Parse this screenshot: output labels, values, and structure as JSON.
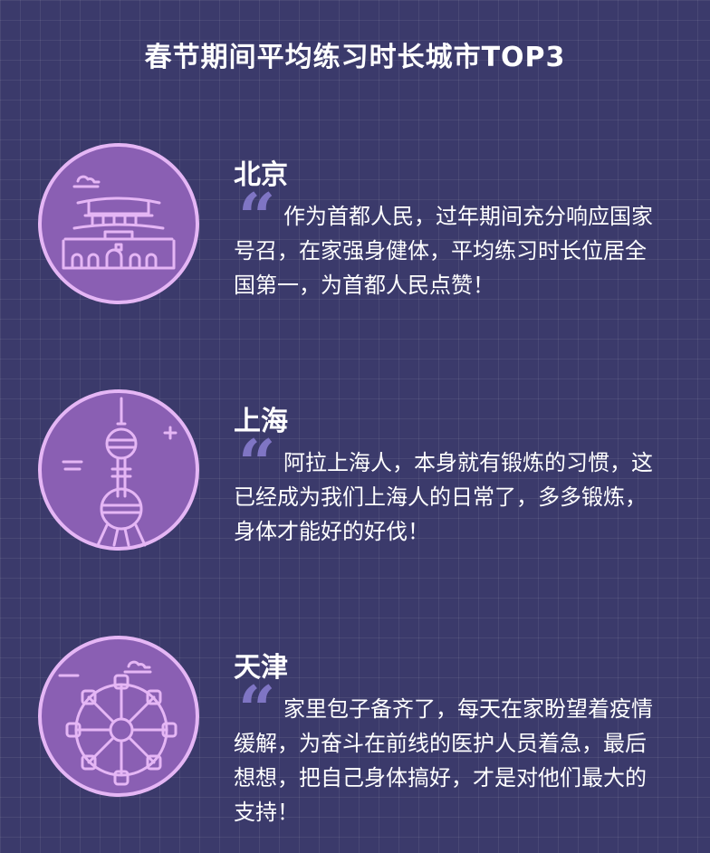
{
  "title": "春节期间平均练习时长城市TOP3",
  "cities": [
    {
      "name": "北京",
      "quote_mark": "“",
      "text": "作为首都人民，过年期间充分响应国家号召，在家强身健体，平均练习时长位居全国第一，为首都人民点赞！",
      "icon": "tiananmen-icon"
    },
    {
      "name": "上海",
      "quote_mark": "“",
      "text": "阿拉上海人，本身就有锻炼的习惯，这已经成为我们上海人的日常了，多多锻炼，身体才能好的好伐！",
      "icon": "oriental-pearl-tower-icon"
    },
    {
      "name": "天津",
      "quote_mark": "“",
      "text": "家里包子备齐了，每天在家盼望着疫情缓解，为奋斗在前线的医护人员着急，最后想想，把自己身体搞好，才是对他们最大的支持！",
      "icon": "ferris-wheel-icon"
    }
  ],
  "colors": {
    "background": "#3b3a6b",
    "badge_fill": "#8a5fb3",
    "badge_line": "#e5b6f5",
    "quote_mark": "#7f75c4"
  }
}
